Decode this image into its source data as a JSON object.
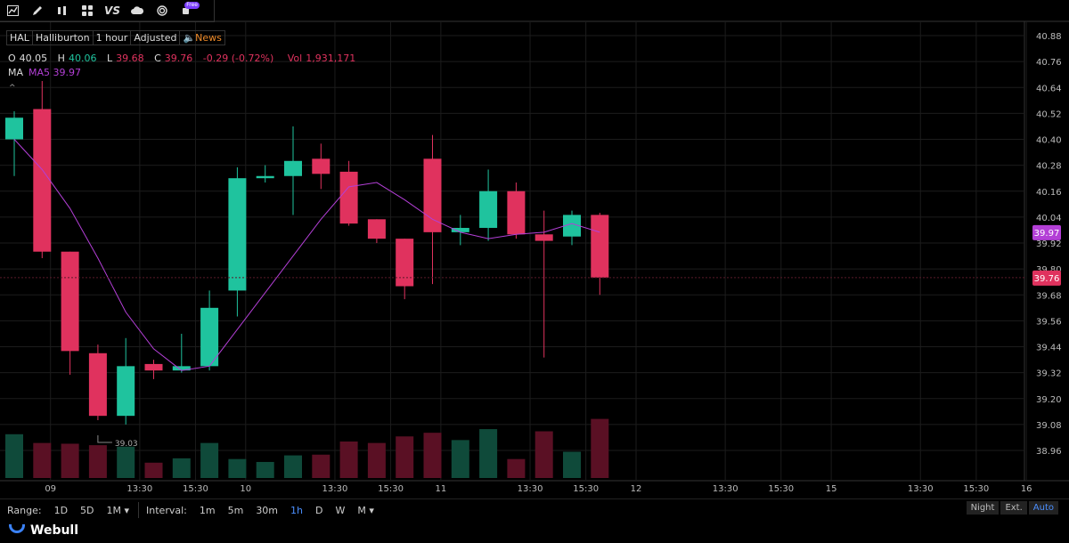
{
  "toolbar": {
    "icons": [
      "chart-type-icon",
      "draw-icon",
      "indicators-icon",
      "layout-icon",
      "compare-icon",
      "cloud-icon",
      "target-icon",
      "ai-icon"
    ],
    "vs_label": "VS",
    "badge": "Free"
  },
  "info": {
    "symbol": "HAL",
    "name": "Halliburton",
    "interval": "1 hour",
    "adjusted": "Adjusted",
    "news": "News"
  },
  "ohlc": {
    "o_label": "O",
    "o": "40.05",
    "h_label": "H",
    "h": "40.06",
    "l_label": "L",
    "l": "39.68",
    "c_label": "C",
    "c": "39.76",
    "change": "-0.29 (-0.72%)",
    "vol_label": "Vol",
    "vol": "1,931,171"
  },
  "ma": {
    "label": "MA",
    "value": "MA5 39.97"
  },
  "colors": {
    "up": "#1fc39e",
    "down": "#e0325e",
    "ma": "#b33fd6",
    "up_vol": "#0f4a3a",
    "down_vol": "#5a1024"
  },
  "chart_data": {
    "type": "candlestick",
    "ylim": [
      38.9,
      40.9
    ],
    "y_ticks": [
      "40.88",
      "40.76",
      "40.64",
      "40.52",
      "40.40",
      "40.28",
      "40.16",
      "40.04",
      "39.92",
      "39.80",
      "39.68",
      "39.56",
      "39.44",
      "39.32",
      "39.20",
      "39.08",
      "38.96"
    ],
    "x_labels": [
      {
        "label": "09",
        "slot": 1.3
      },
      {
        "label": "13:30",
        "slot": 4.5
      },
      {
        "label": "15:30",
        "slot": 6.5
      },
      {
        "label": "10",
        "slot": 8.3
      },
      {
        "label": "13:30",
        "slot": 11.5
      },
      {
        "label": "15:30",
        "slot": 13.5
      },
      {
        "label": "11",
        "slot": 15.3
      },
      {
        "label": "13:30",
        "slot": 18.5
      },
      {
        "label": "15:30",
        "slot": 20.5
      },
      {
        "label": "12",
        "slot": 22.3
      },
      {
        "label": "13:30",
        "slot": 25.5
      },
      {
        "label": "15:30",
        "slot": 27.5
      },
      {
        "label": "15",
        "slot": 29.3
      },
      {
        "label": "13:30",
        "slot": 32.5
      },
      {
        "label": "15:30",
        "slot": 34.5
      },
      {
        "label": "16",
        "slot": 36.3
      }
    ],
    "candles": [
      {
        "o": 40.4,
        "h": 40.53,
        "l": 40.23,
        "c": 40.5,
        "v": 0.6
      },
      {
        "o": 40.54,
        "h": 40.67,
        "l": 39.85,
        "c": 39.88,
        "v": 0.48
      },
      {
        "o": 39.88,
        "h": 39.88,
        "l": 39.31,
        "c": 39.42,
        "v": 0.47
      },
      {
        "o": 39.41,
        "h": 39.45,
        "l": 39.1,
        "c": 39.12,
        "v": 0.45
      },
      {
        "o": 39.12,
        "h": 39.48,
        "l": 39.08,
        "c": 39.35,
        "v": 0.43
      },
      {
        "o": 39.36,
        "h": 39.38,
        "l": 39.29,
        "c": 39.33,
        "v": 0.21
      },
      {
        "o": 39.33,
        "h": 39.5,
        "l": 39.32,
        "c": 39.35,
        "v": 0.27
      },
      {
        "o": 39.35,
        "h": 39.7,
        "l": 39.33,
        "c": 39.62,
        "v": 0.48
      },
      {
        "o": 39.7,
        "h": 40.27,
        "l": 39.58,
        "c": 40.22,
        "v": 0.26
      },
      {
        "o": 40.22,
        "h": 40.28,
        "l": 40.2,
        "c": 40.23,
        "v": 0.22
      },
      {
        "o": 40.23,
        "h": 40.46,
        "l": 40.05,
        "c": 40.3,
        "v": 0.31
      },
      {
        "o": 40.31,
        "h": 40.38,
        "l": 40.17,
        "c": 40.24,
        "v": 0.32
      },
      {
        "o": 40.25,
        "h": 40.3,
        "l": 40.0,
        "c": 40.01,
        "v": 0.5
      },
      {
        "o": 40.03,
        "h": 40.03,
        "l": 39.92,
        "c": 39.94,
        "v": 0.48
      },
      {
        "o": 39.94,
        "h": 39.94,
        "l": 39.66,
        "c": 39.72,
        "v": 0.57
      },
      {
        "o": 40.31,
        "h": 40.42,
        "l": 39.73,
        "c": 39.97,
        "v": 0.62
      },
      {
        "o": 39.97,
        "h": 40.05,
        "l": 39.91,
        "c": 39.99,
        "v": 0.52
      },
      {
        "o": 39.99,
        "h": 40.26,
        "l": 39.93,
        "c": 40.16,
        "v": 0.67
      },
      {
        "o": 40.16,
        "h": 40.2,
        "l": 39.94,
        "c": 39.96,
        "v": 0.26
      },
      {
        "o": 39.96,
        "h": 40.07,
        "l": 39.39,
        "c": 39.93,
        "v": 0.64
      },
      {
        "o": 39.95,
        "h": 40.07,
        "l": 39.91,
        "c": 40.05,
        "v": 0.36
      },
      {
        "o": 40.05,
        "h": 40.06,
        "l": 39.68,
        "c": 39.76,
        "v": 0.81
      }
    ],
    "ma5": [
      40.4,
      40.26,
      40.08,
      39.85,
      39.6,
      39.43,
      39.33,
      39.35,
      39.52,
      39.69,
      39.86,
      40.03,
      40.18,
      40.2,
      40.12,
      40.03,
      39.97,
      39.94,
      39.96,
      39.97,
      40.01,
      39.97
    ],
    "last_price": "39.76",
    "ma_value": "39.97",
    "low_marker": "39.03"
  },
  "bottom": {
    "range_label": "Range:",
    "ranges": [
      "1D",
      "5D",
      "1M ▾"
    ],
    "interval_label": "Interval:",
    "intervals": [
      "1m",
      "5m",
      "30m",
      "1h",
      "D",
      "W",
      "M ▾"
    ],
    "active_interval": "1h",
    "toggles": [
      "Night",
      "Ext.",
      "Auto"
    ],
    "active_toggle": "Auto"
  },
  "brand": "Webull"
}
